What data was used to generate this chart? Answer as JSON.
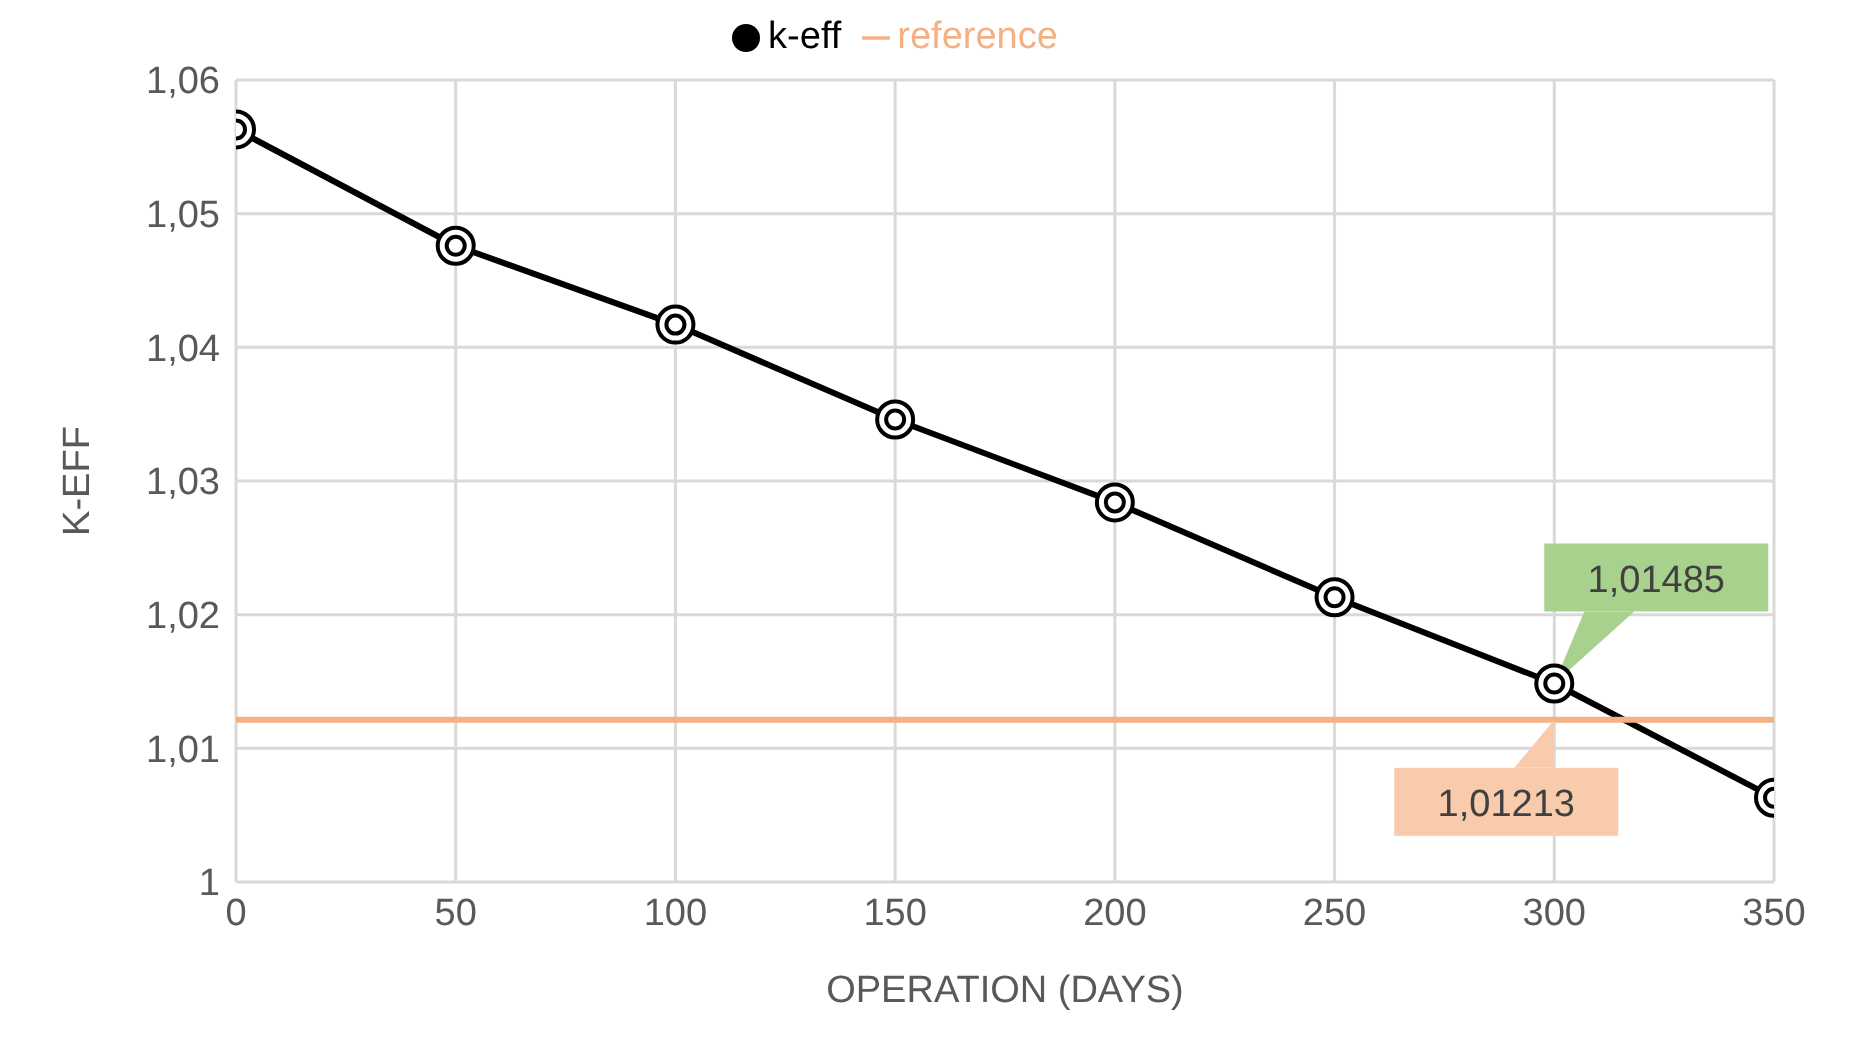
{
  "chart_data": {
    "type": "line",
    "xlabel": "OPERATION (DAYS)",
    "ylabel": "K-EFF",
    "x": [
      0,
      50,
      100,
      150,
      200,
      250,
      300,
      350
    ],
    "series": [
      {
        "name": "k-eff",
        "color": "#000000",
        "marker": "circle",
        "values": [
          1.0563,
          1.0476,
          1.0417,
          1.0346,
          1.0284,
          1.0213,
          1.01485,
          1.0063
        ]
      },
      {
        "name": "reference",
        "color": "#f4b183",
        "marker": "none",
        "values": [
          1.01213,
          1.01213,
          1.01213,
          1.01213,
          1.01213,
          1.01213,
          1.01213,
          1.01213
        ]
      }
    ],
    "annotations": [
      {
        "text": "1,01485",
        "x": 300,
        "y": 1.01485
      },
      {
        "text": "1,01213",
        "x": 300,
        "y": 1.01213
      }
    ],
    "xlim": [
      0,
      350
    ],
    "xticks": [
      0,
      50,
      100,
      150,
      200,
      250,
      300,
      350
    ],
    "ylim": [
      1,
      1.06
    ],
    "yticks": [
      1,
      {
        "value": 1.01,
        "label": "1,01"
      },
      {
        "value": 1.02,
        "label": "1,02"
      },
      {
        "value": 1.03,
        "label": "1,03"
      },
      {
        "value": 1.04,
        "label": "1,04"
      },
      {
        "value": 1.05,
        "label": "1,05"
      },
      {
        "value": 1.06,
        "label": "1,06"
      }
    ],
    "grid": true,
    "legend": "top",
    "line_style": "solid"
  }
}
